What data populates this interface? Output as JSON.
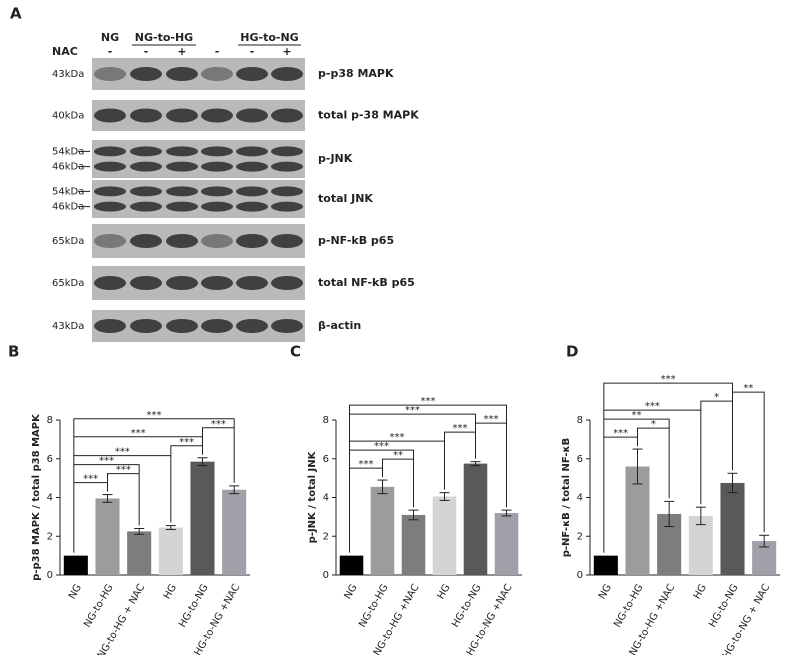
{
  "panel_labels": [
    "A",
    "B",
    "C",
    "D"
  ],
  "blot": {
    "groups": [
      "NG",
      "NG-to-HG",
      "HG-to-NG"
    ],
    "treatment": "NAC",
    "signs": [
      "-",
      "-",
      "+",
      "-",
      "-",
      "+"
    ],
    "rows": [
      {
        "markers": [
          "43kDa"
        ],
        "label": "p-p38 MAPK"
      },
      {
        "markers": [
          "40kDa"
        ],
        "label": "total p-38 MAPK"
      },
      {
        "markers": [
          "54kDa",
          "46kDa"
        ],
        "label": "p-JNK"
      },
      {
        "markers": [
          "54kDa",
          "46kDa"
        ],
        "label": "total JNK"
      },
      {
        "markers": [
          "65kDa"
        ],
        "label": "p-NF-kB p65"
      },
      {
        "markers": [
          "65kDa"
        ],
        "label": "total NF-kB p65"
      },
      {
        "markers": [
          "43kDa"
        ],
        "label": "β-actin"
      }
    ]
  },
  "chart_data": [
    {
      "type": "bar",
      "y_label": "p-p38 MAPK / total p38 MAPK",
      "categories": [
        "NG",
        "NG-to-HG",
        "NG-to-HG + NAC",
        "HG",
        "HG-to-NG",
        "HG-to-NG +NAC"
      ],
      "values": [
        1.0,
        3.95,
        2.25,
        2.45,
        5.85,
        4.4
      ],
      "errors": [
        0,
        0.2,
        0.15,
        0.1,
        0.2,
        0.2
      ],
      "colors": [
        "#000000",
        "#9c9c9c",
        "#7d7d7d",
        "#d4d4d4",
        "#595959",
        "#a0a0a8"
      ],
      "ylim": [
        0,
        8
      ],
      "yticks": [
        0,
        2,
        4,
        6,
        8
      ],
      "annotations": [
        {
          "text": "***",
          "from": 0,
          "to": 1
        },
        {
          "text": "***",
          "from": 1,
          "to": 2
        },
        {
          "text": "***",
          "from": 0,
          "to": 2
        },
        {
          "text": "***",
          "from": 0,
          "to": 3
        },
        {
          "text": "***",
          "from": 3,
          "to": 4
        },
        {
          "text": "***",
          "from": 0,
          "to": 4
        },
        {
          "text": "***",
          "from": 4,
          "to": 5
        },
        {
          "text": "***",
          "from": 0,
          "to": 5
        }
      ]
    },
    {
      "type": "bar",
      "y_label": "p-JNK / total JNK",
      "categories": [
        "NG",
        "NG-to-HG",
        "NG-to-HG +NAC",
        "HG",
        "HG-to-NG",
        "HG-to-NG +NAC"
      ],
      "values": [
        1.0,
        4.55,
        3.1,
        4.05,
        5.75,
        3.2
      ],
      "errors": [
        0,
        0.35,
        0.25,
        0.2,
        0.1,
        0.15
      ],
      "colors": [
        "#000000",
        "#9c9c9c",
        "#7d7d7d",
        "#d4d4d4",
        "#595959",
        "#a0a0a8"
      ],
      "ylim": [
        0,
        8
      ],
      "yticks": [
        0,
        2,
        4,
        6,
        8
      ],
      "annotations": [
        {
          "text": "***",
          "from": 0,
          "to": 1
        },
        {
          "text": "**",
          "from": 1,
          "to": 2
        },
        {
          "text": "***",
          "from": 0,
          "to": 2
        },
        {
          "text": "***",
          "from": 0,
          "to": 3
        },
        {
          "text": "***",
          "from": 3,
          "to": 4
        },
        {
          "text": "***",
          "from": 4,
          "to": 5
        },
        {
          "text": "***",
          "from": 0,
          "to": 4
        },
        {
          "text": "***",
          "from": 0,
          "to": 5
        }
      ]
    },
    {
      "type": "bar",
      "y_label": "p-NF-κB / total NF-κB",
      "categories": [
        "NG",
        "NG-to-HG",
        "NG-to-HG +NAC",
        "HG",
        "HG-to-NG",
        "HG-to-NG + NAC"
      ],
      "values": [
        1.0,
        5.6,
        3.15,
        3.05,
        4.75,
        1.75
      ],
      "errors": [
        0,
        0.9,
        0.65,
        0.45,
        0.5,
        0.3
      ],
      "colors": [
        "#000000",
        "#9c9c9c",
        "#7d7d7d",
        "#d4d4d4",
        "#595959",
        "#a0a0a8"
      ],
      "ylim": [
        0,
        8
      ],
      "yticks": [
        0,
        2,
        4,
        6,
        8
      ],
      "annotations": [
        {
          "text": "***",
          "from": 0,
          "to": 1
        },
        {
          "text": "*",
          "from": 1,
          "to": 2
        },
        {
          "text": "**",
          "from": 0,
          "to": 2
        },
        {
          "text": "***",
          "from": 0,
          "to": 3
        },
        {
          "text": "*",
          "from": 3,
          "to": 4
        },
        {
          "text": "**",
          "from": 4,
          "to": 5
        },
        {
          "text": "***",
          "from": 0,
          "to": 4
        }
      ]
    }
  ]
}
